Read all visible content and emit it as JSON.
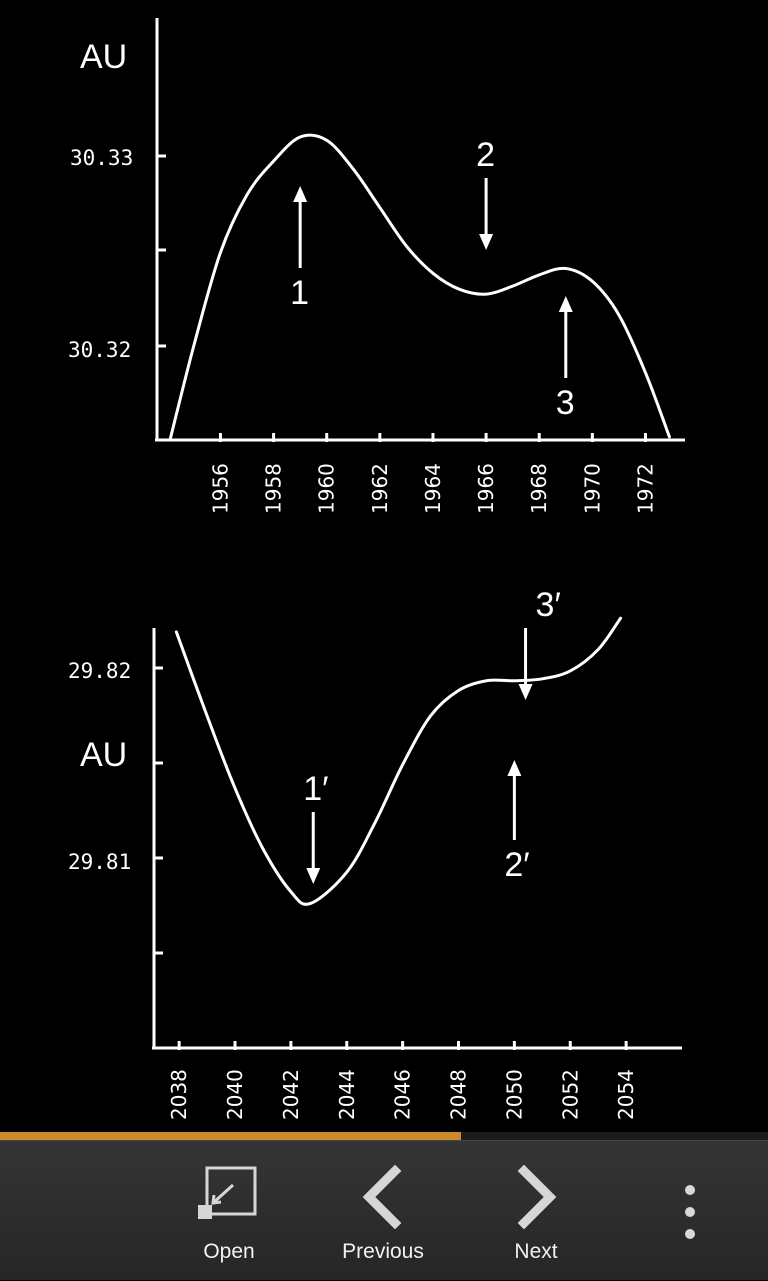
{
  "chart_data": [
    {
      "type": "line",
      "ylabel": "AU",
      "yticks": [
        "30.33",
        "30.32"
      ],
      "xticks": [
        "1956",
        "1958",
        "1960",
        "1962",
        "1964",
        "1966",
        "1968",
        "1970",
        "1972"
      ],
      "x_range": [
        1954.1,
        1973.3
      ],
      "y_range": [
        30.3151,
        30.335
      ],
      "points": [
        [
          1954.1,
          30.3151
        ],
        [
          1955.0,
          30.321
        ],
        [
          1956.0,
          30.3268
        ],
        [
          1957.0,
          30.3304
        ],
        [
          1958.0,
          30.3325
        ],
        [
          1959.0,
          30.334
        ],
        [
          1960.0,
          30.3338
        ],
        [
          1961.0,
          30.332
        ],
        [
          1962.0,
          30.3296
        ],
        [
          1963.0,
          30.3272
        ],
        [
          1964.0,
          30.3255
        ],
        [
          1965.0,
          30.3245
        ],
        [
          1966.0,
          30.3242
        ],
        [
          1967.0,
          30.3247
        ],
        [
          1968.0,
          30.3254
        ],
        [
          1969.0,
          30.3258
        ],
        [
          1970.0,
          30.325
        ],
        [
          1971.0,
          30.3229
        ],
        [
          1972.0,
          30.3193
        ],
        [
          1972.9,
          30.3153
        ]
      ],
      "annotations": [
        {
          "label": "1",
          "x": 1959.0,
          "direction": "up"
        },
        {
          "label": "2",
          "x": 1966.0,
          "direction": "down"
        },
        {
          "label": "3",
          "x": 1969.0,
          "direction": "up"
        }
      ]
    },
    {
      "type": "line",
      "ylabel": "AU",
      "yticks": [
        "29.82",
        "29.81"
      ],
      "xticks": [
        "2038",
        "2040",
        "2042",
        "2044",
        "2046",
        "2048",
        "2050",
        "2052",
        "2054"
      ],
      "x_range": [
        2037.1,
        2056.0
      ],
      "y_range": [
        29.801,
        29.8225
      ],
      "points": [
        [
          2037.9,
          29.8223
        ],
        [
          2039.0,
          29.818
        ],
        [
          2040.0,
          29.8143
        ],
        [
          2041.0,
          29.8112
        ],
        [
          2042.0,
          29.809
        ],
        [
          2042.7,
          29.8084
        ],
        [
          2044.0,
          29.81
        ],
        [
          2045.0,
          29.8125
        ],
        [
          2046.0,
          29.8155
        ],
        [
          2047.0,
          29.818
        ],
        [
          2048.0,
          29.8193
        ],
        [
          2049.0,
          29.8198
        ],
        [
          2050.0,
          29.8198
        ],
        [
          2051.0,
          29.8199
        ],
        [
          2052.0,
          29.8203
        ],
        [
          2053.0,
          29.8214
        ],
        [
          2053.8,
          29.823
        ]
      ],
      "annotations": [
        {
          "label": "1′",
          "x": 2042.8,
          "direction": "down"
        },
        {
          "label": "2′",
          "x": 2050.0,
          "direction": "up"
        },
        {
          "label": "3′",
          "x": 2050.4,
          "direction": "down"
        }
      ]
    }
  ],
  "progress": 0.6,
  "toolbar": {
    "open_label": "Open",
    "previous_label": "Previous",
    "next_label": "Next"
  },
  "colors": {
    "progress": "#c98a2c",
    "toolbar_bg": "#2e2e2e",
    "icon": "#d6d6d6"
  },
  "icons": {
    "open": "open-external-icon",
    "previous": "chevron-left-icon",
    "next": "chevron-right-icon",
    "more": "overflow-menu-icon"
  }
}
